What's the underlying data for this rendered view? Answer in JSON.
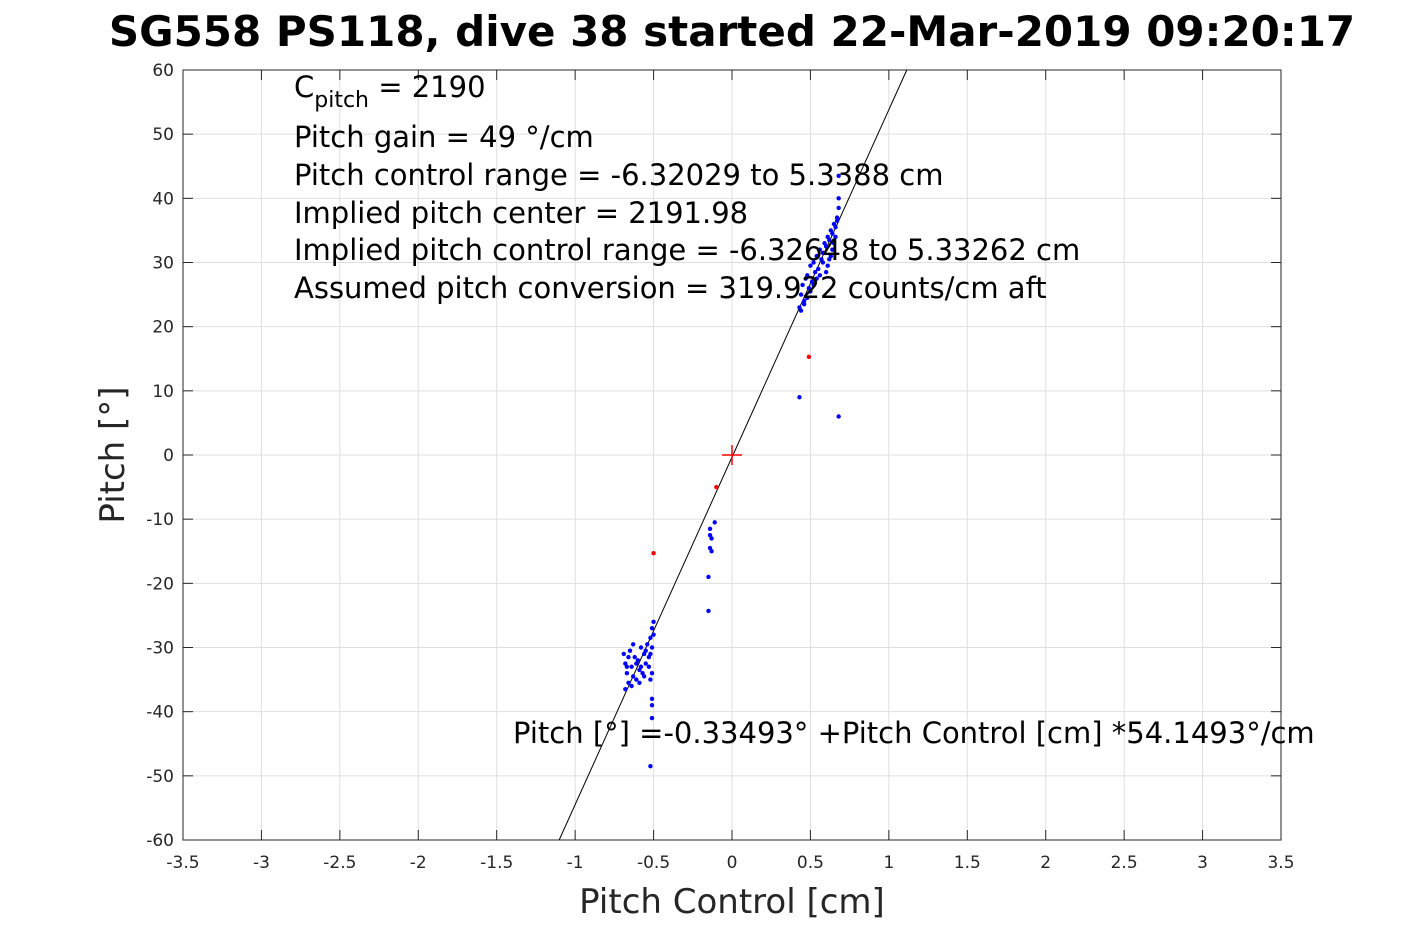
{
  "chart_data": {
    "type": "scatter",
    "title": "SG558 PS118, dive 38 started 22-Mar-2019 09:20:17",
    "xlabel": "Pitch Control [cm]",
    "ylabel": "Pitch [°]",
    "xlim": [
      -3.5,
      3.5
    ],
    "ylim": [
      -60,
      60
    ],
    "xticks": [
      -3.5,
      -3,
      -2.5,
      -2,
      -1.5,
      -1,
      -0.5,
      0,
      0.5,
      1,
      1.5,
      2,
      2.5,
      3,
      3.5
    ],
    "xtick_labels": [
      "-3.5",
      "-3",
      "-2.5",
      "-2",
      "-1.5",
      "-1",
      "-0.5",
      "0",
      "0.5",
      "1",
      "1.5",
      "2",
      "2.5",
      "3",
      "3.5"
    ],
    "yticks": [
      -60,
      -50,
      -40,
      -30,
      -20,
      -10,
      0,
      10,
      20,
      30,
      40,
      50,
      60
    ],
    "ytick_labels": [
      "-60",
      "-50",
      "-40",
      "-30",
      "-20",
      "-10",
      "0",
      "10",
      "20",
      "30",
      "40",
      "50",
      "60"
    ],
    "grid": true,
    "annotations": {
      "c_pitch_prefix": "C",
      "c_pitch_sub": "pitch",
      "c_pitch_value": " = 2190",
      "lines": [
        "Pitch gain = 49 °/cm",
        "Pitch control range = -6.32029 to 5.3388 cm",
        "Implied pitch center = 2191.98",
        "Implied pitch control range = -6.32648 to 5.33262 cm",
        "Assumed pitch conversion = 319.922 counts/cm aft"
      ],
      "fit_equation": "Pitch [°] =-0.33493° +Pitch Control [cm] *54.1493°/cm"
    },
    "fit_line": {
      "intercept": -0.33493,
      "slope": 54.1493
    },
    "center_marker": {
      "x": 0,
      "y": 0
    },
    "series": [
      {
        "color": "#0000ff",
        "points": [
          [
            -0.69,
            -31.0
          ],
          [
            -0.68,
            -32.5
          ],
          [
            -0.67,
            -34.0
          ],
          [
            -0.66,
            -35.5
          ],
          [
            -0.68,
            -36.5
          ],
          [
            -0.65,
            -30.5
          ],
          [
            -0.64,
            -33.0
          ],
          [
            -0.63,
            -34.5
          ],
          [
            -0.62,
            -31.5
          ],
          [
            -0.61,
            -35.0
          ],
          [
            -0.6,
            -32.0
          ],
          [
            -0.59,
            -33.5
          ],
          [
            -0.58,
            -30.0
          ],
          [
            -0.57,
            -34.0
          ],
          [
            -0.56,
            -31.0
          ],
          [
            -0.55,
            -32.5
          ],
          [
            -0.54,
            -29.5
          ],
          [
            -0.53,
            -33.0
          ],
          [
            -0.52,
            -31.0
          ],
          [
            -0.51,
            -30.0
          ],
          [
            -0.52,
            -28.5
          ],
          [
            -0.51,
            -27.0
          ],
          [
            -0.5,
            -26.0
          ],
          [
            -0.5,
            -28.0
          ],
          [
            -0.51,
            -34.0
          ],
          [
            -0.52,
            -35.0
          ],
          [
            -0.67,
            -33.0
          ],
          [
            -0.66,
            -31.5
          ],
          [
            -0.64,
            -36.0
          ],
          [
            -0.63,
            -29.5
          ],
          [
            -0.61,
            -32.5
          ],
          [
            -0.59,
            -35.5
          ],
          [
            -0.58,
            -33.0
          ],
          [
            -0.56,
            -34.5
          ],
          [
            -0.55,
            -30.5
          ],
          [
            -0.53,
            -31.5
          ],
          [
            -0.51,
            -38.0
          ],
          [
            -0.51,
            -39.0
          ],
          [
            -0.51,
            -41.0
          ],
          [
            -0.52,
            -48.5
          ],
          [
            -0.14,
            -11.5
          ],
          [
            -0.14,
            -12.5
          ],
          [
            -0.13,
            -13.0
          ],
          [
            -0.14,
            -14.5
          ],
          [
            -0.13,
            -15.0
          ],
          [
            -0.11,
            -10.5
          ],
          [
            -0.15,
            -19.0
          ],
          [
            -0.15,
            -24.3
          ],
          [
            0.43,
            23.0
          ],
          [
            0.44,
            25.0
          ],
          [
            0.45,
            26.5
          ],
          [
            0.46,
            24.0
          ],
          [
            0.47,
            27.5
          ],
          [
            0.48,
            28.0
          ],
          [
            0.49,
            26.0
          ],
          [
            0.5,
            29.5
          ],
          [
            0.51,
            27.0
          ],
          [
            0.52,
            30.0
          ],
          [
            0.53,
            28.5
          ],
          [
            0.54,
            31.0
          ],
          [
            0.55,
            29.0
          ],
          [
            0.56,
            32.0
          ],
          [
            0.57,
            30.5
          ],
          [
            0.58,
            31.5
          ],
          [
            0.59,
            33.0
          ],
          [
            0.6,
            32.5
          ],
          [
            0.61,
            34.0
          ],
          [
            0.62,
            33.5
          ],
          [
            0.63,
            35.0
          ],
          [
            0.64,
            34.5
          ],
          [
            0.65,
            36.0
          ],
          [
            0.66,
            35.5
          ],
          [
            0.67,
            37.0
          ],
          [
            0.68,
            38.5
          ],
          [
            0.68,
            40.0
          ],
          [
            0.67,
            36.5
          ],
          [
            0.66,
            34.0
          ],
          [
            0.65,
            33.0
          ],
          [
            0.64,
            32.0
          ],
          [
            0.63,
            31.0
          ],
          [
            0.62,
            30.5
          ],
          [
            0.61,
            29.5
          ],
          [
            0.6,
            28.5
          ],
          [
            0.58,
            30.0
          ],
          [
            0.56,
            28.0
          ],
          [
            0.54,
            27.5
          ],
          [
            0.52,
            26.5
          ],
          [
            0.5,
            25.5
          ],
          [
            0.48,
            24.5
          ],
          [
            0.46,
            23.5
          ],
          [
            0.44,
            22.5
          ],
          [
            0.68,
            43.5
          ],
          [
            0.43,
            9.0
          ],
          [
            0.68,
            6.0
          ]
        ]
      },
      {
        "color": "#ff0000",
        "points": [
          [
            -0.5,
            -15.3
          ],
          [
            0.49,
            15.3
          ],
          [
            -0.1,
            -5.0
          ]
        ]
      }
    ]
  }
}
